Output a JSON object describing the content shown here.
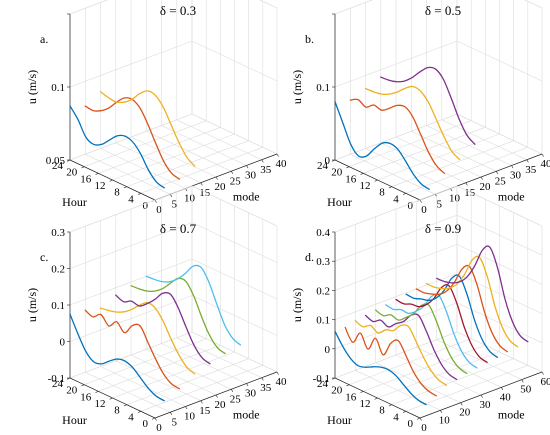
{
  "colors": [
    "#0072BD",
    "#D95319",
    "#EDB120",
    "#7E2F8E",
    "#77AC30",
    "#4DBEEE",
    "#A2142F",
    "#0072BD",
    "#D95319",
    "#EDB120",
    "#7E2F8E"
  ],
  "chart_data": [
    {
      "type": "line",
      "panel_letter": "a.",
      "title": "δ = 0.3",
      "xlabel": "mode",
      "ylabel": "Hour",
      "zlabel": "u (m/s)",
      "xlim": [
        0,
        40
      ],
      "ylim": [
        0,
        24
      ],
      "zlim": [
        0.05,
        0.15
      ],
      "xticks": [
        0,
        5,
        10,
        15,
        20,
        25,
        30,
        35,
        40
      ],
      "yticks": [
        0,
        4,
        8,
        12,
        16,
        20,
        24
      ],
      "zticks": [
        0.05,
        0.1,
        0.15
      ],
      "zticklabels": [
        "0.05",
        "0.1",
        ""
      ],
      "series": [
        {
          "mode_start": 0,
          "hours": [
            24,
            22,
            20,
            18,
            16,
            14,
            12,
            10,
            8,
            6,
            4,
            2,
            0
          ],
          "values": [
            0.087,
            0.08,
            0.07,
            0.067,
            0.069,
            0.074,
            0.079,
            0.081,
            0.079,
            0.073,
            0.064,
            0.058,
            0.056
          ]
        },
        {
          "mode_start": 5,
          "hours": [
            24,
            22,
            20,
            18,
            16,
            14,
            12,
            10,
            8,
            6,
            4,
            2,
            0
          ],
          "values": [
            0.083,
            0.082,
            0.084,
            0.088,
            0.094,
            0.099,
            0.1,
            0.096,
            0.087,
            0.076,
            0.066,
            0.06,
            0.058
          ]
        },
        {
          "mode_start": 10,
          "hours": [
            24,
            22,
            20,
            18,
            16,
            14,
            12,
            10,
            8,
            6,
            4,
            2,
            0
          ],
          "values": [
            0.089,
            0.087,
            0.086,
            0.088,
            0.092,
            0.098,
            0.102,
            0.101,
            0.095,
            0.085,
            0.075,
            0.067,
            0.063
          ]
        }
      ]
    },
    {
      "type": "line",
      "panel_letter": "b.",
      "title": "δ = 0.5",
      "xlabel": "mode",
      "ylabel": "Hour",
      "zlabel": "u (m/s)",
      "xlim": [
        0,
        40
      ],
      "ylim": [
        0,
        24
      ],
      "zlim": [
        0,
        0.2
      ],
      "xticks": [
        0,
        5,
        10,
        15,
        20,
        25,
        30,
        35,
        40
      ],
      "yticks": [
        0,
        4,
        8,
        12,
        16,
        20,
        24
      ],
      "zticks": [
        0,
        0.1,
        0.2
      ],
      "zticklabels": [
        "0",
        "0.1",
        ""
      ],
      "series": [
        {
          "mode_start": 0,
          "hours": [
            24,
            22,
            20,
            18,
            16,
            14,
            12,
            10,
            8,
            6,
            4,
            2,
            0
          ],
          "values": [
            0.08,
            0.055,
            0.03,
            0.018,
            0.022,
            0.036,
            0.048,
            0.052,
            0.048,
            0.036,
            0.022,
            0.013,
            0.01
          ]
        },
        {
          "mode_start": 5,
          "hours": [
            24,
            22,
            20,
            18,
            16,
            14,
            12,
            10,
            8,
            6,
            4,
            2,
            0
          ],
          "values": [
            0.074,
            0.079,
            0.073,
            0.08,
            0.077,
            0.084,
            0.092,
            0.094,
            0.084,
            0.064,
            0.044,
            0.03,
            0.024
          ]
        },
        {
          "mode_start": 10,
          "hours": [
            24,
            22,
            20,
            18,
            16,
            14,
            12,
            10,
            8,
            6,
            4,
            2,
            0
          ],
          "values": [
            0.082,
            0.082,
            0.083,
            0.087,
            0.094,
            0.103,
            0.11,
            0.108,
            0.097,
            0.078,
            0.058,
            0.042,
            0.035
          ]
        },
        {
          "mode_start": 15,
          "hours": [
            24,
            22,
            20,
            18,
            16,
            14,
            12,
            10,
            8,
            6,
            4,
            2,
            0
          ],
          "values": [
            0.09,
            0.09,
            0.092,
            0.097,
            0.106,
            0.118,
            0.128,
            0.13,
            0.12,
            0.098,
            0.074,
            0.056,
            0.048
          ]
        }
      ]
    },
    {
      "type": "line",
      "panel_letter": "c.",
      "title": "δ = 0.7",
      "xlabel": "mode",
      "ylabel": "Hour",
      "zlabel": "u (m/s)",
      "xlim": [
        0,
        40
      ],
      "ylim": [
        0,
        24
      ],
      "zlim": [
        -0.1,
        0.3
      ],
      "xticks": [
        0,
        5,
        10,
        15,
        20,
        25,
        30,
        35,
        40
      ],
      "yticks": [
        0,
        4,
        8,
        12,
        16,
        20,
        24
      ],
      "zticks": [
        -0.1,
        0,
        0.1,
        0.2,
        0.3
      ],
      "zticklabels": [
        "-0.1",
        "0",
        "0.1",
        "0.2",
        "0.3"
      ],
      "series": [
        {
          "mode_start": 0,
          "hours": [
            24,
            22,
            20,
            18,
            16,
            14,
            12,
            10,
            8,
            6,
            4,
            2,
            0
          ],
          "values": [
            0.075,
            0.03,
            -0.01,
            -0.03,
            -0.028,
            -0.012,
            0.002,
            0.005,
            -0.005,
            -0.025,
            -0.045,
            -0.058,
            -0.062
          ]
        },
        {
          "mode_start": 5,
          "hours": [
            24,
            22,
            20,
            18,
            16,
            14,
            12,
            10,
            8,
            6,
            4,
            2,
            0
          ],
          "values": [
            0.07,
            0.06,
            0.075,
            0.052,
            0.072,
            0.05,
            0.078,
            0.085,
            0.048,
            0.01,
            -0.022,
            -0.04,
            -0.045
          ]
        },
        {
          "mode_start": 10,
          "hours": [
            24,
            22,
            20,
            18,
            16,
            14,
            12,
            10,
            8,
            6,
            4,
            2,
            0
          ],
          "values": [
            0.06,
            0.062,
            0.066,
            0.075,
            0.09,
            0.11,
            0.125,
            0.118,
            0.09,
            0.05,
            0.015,
            -0.01,
            -0.02
          ]
        },
        {
          "mode_start": 15,
          "hours": [
            24,
            22,
            20,
            18,
            16,
            14,
            12,
            10,
            8,
            6,
            4,
            2,
            0
          ],
          "values": [
            0.08,
            0.07,
            0.08,
            0.075,
            0.09,
            0.11,
            0.135,
            0.14,
            0.11,
            0.065,
            0.025,
            0.0,
            -0.008
          ]
        },
        {
          "mode_start": 20,
          "hours": [
            24,
            22,
            20,
            18,
            16,
            14,
            12,
            10,
            8,
            6,
            4,
            2,
            0
          ],
          "values": [
            0.09,
            0.09,
            0.092,
            0.1,
            0.115,
            0.138,
            0.16,
            0.16,
            0.128,
            0.08,
            0.038,
            0.012,
            0.004
          ]
        },
        {
          "mode_start": 25,
          "hours": [
            24,
            22,
            20,
            18,
            16,
            14,
            12,
            10,
            8,
            6,
            4,
            2,
            0
          ],
          "values": [
            0.1,
            0.1,
            0.102,
            0.11,
            0.126,
            0.15,
            0.178,
            0.182,
            0.15,
            0.098,
            0.05,
            0.022,
            0.012
          ]
        }
      ]
    },
    {
      "type": "line",
      "panel_letter": "d.",
      "title": "δ = 0.9",
      "xlabel": "mode",
      "ylabel": "Hour",
      "zlabel": "u (m/s)",
      "xlim": [
        0,
        60
      ],
      "ylim": [
        0,
        24
      ],
      "zlim": [
        -0.1,
        0.4
      ],
      "xticks": [
        0,
        10,
        20,
        30,
        40,
        50,
        60
      ],
      "yticks": [
        0,
        4,
        8,
        12,
        16,
        20,
        24
      ],
      "zticks": [
        -0.1,
        0,
        0.1,
        0.2,
        0.3,
        0.4
      ],
      "zticklabels": [
        "-0.1",
        "0",
        "0.1",
        "0.2",
        "0.3",
        "0.4"
      ],
      "series": [
        {
          "mode_start": 0,
          "hours": [
            24,
            22,
            20,
            18,
            16,
            14,
            12,
            10,
            8,
            6,
            4,
            2,
            0
          ],
          "values": [
            0.06,
            0.02,
            -0.01,
            -0.025,
            -0.02,
            -0.008,
            0.002,
            0.004,
            -0.005,
            -0.025,
            -0.045,
            -0.058,
            -0.062
          ]
        },
        {
          "mode_start": 5,
          "hours": [
            24,
            22,
            20,
            18,
            16,
            14,
            12,
            10,
            8,
            6,
            4,
            2,
            0
          ],
          "values": [
            0.06,
            0.02,
            0.062,
            0.018,
            0.066,
            0.02,
            0.07,
            0.09,
            0.05,
            0.005,
            -0.025,
            -0.04,
            -0.045
          ]
        },
        {
          "mode_start": 10,
          "hours": [
            24,
            22,
            20,
            18,
            16,
            14,
            12,
            10,
            8,
            6,
            4,
            2,
            0
          ],
          "values": [
            0.07,
            0.06,
            0.075,
            0.06,
            0.082,
            0.09,
            0.118,
            0.125,
            0.085,
            0.04,
            0.005,
            -0.015,
            -0.022
          ]
        },
        {
          "mode_start": 15,
          "hours": [
            24,
            22,
            20,
            18,
            16,
            14,
            12,
            10,
            8,
            6,
            4,
            2,
            0
          ],
          "values": [
            0.075,
            0.065,
            0.08,
            0.068,
            0.09,
            0.108,
            0.14,
            0.15,
            0.108,
            0.055,
            0.015,
            -0.008,
            -0.015
          ]
        },
        {
          "mode_start": 20,
          "hours": [
            24,
            22,
            20,
            18,
            16,
            14,
            12,
            10,
            8,
            6,
            4,
            2,
            0
          ],
          "values": [
            0.08,
            0.072,
            0.085,
            0.078,
            0.098,
            0.122,
            0.16,
            0.172,
            0.128,
            0.068,
            0.024,
            0.0,
            -0.008
          ]
        },
        {
          "mode_start": 25,
          "hours": [
            24,
            22,
            20,
            18,
            16,
            14,
            12,
            10,
            8,
            6,
            4,
            2,
            0
          ],
          "values": [
            0.085,
            0.08,
            0.09,
            0.088,
            0.106,
            0.134,
            0.178,
            0.192,
            0.146,
            0.08,
            0.032,
            0.006,
            -0.002
          ]
        },
        {
          "mode_start": 30,
          "hours": [
            24,
            22,
            20,
            18,
            16,
            14,
            12,
            10,
            8,
            6,
            4,
            2,
            0
          ],
          "values": [
            0.09,
            0.086,
            0.096,
            0.098,
            0.116,
            0.148,
            0.196,
            0.212,
            0.164,
            0.092,
            0.04,
            0.012,
            0.004
          ]
        },
        {
          "mode_start": 35,
          "hours": [
            24,
            22,
            20,
            18,
            16,
            14,
            12,
            10,
            8,
            6,
            4,
            2,
            0
          ],
          "values": [
            0.095,
            0.092,
            0.1,
            0.106,
            0.126,
            0.162,
            0.214,
            0.232,
            0.182,
            0.104,
            0.048,
            0.018,
            0.008
          ]
        },
        {
          "mode_start": 40,
          "hours": [
            24,
            22,
            20,
            18,
            16,
            14,
            12,
            10,
            8,
            6,
            4,
            2,
            0
          ],
          "values": [
            0.1,
            0.098,
            0.104,
            0.114,
            0.136,
            0.176,
            0.232,
            0.252,
            0.2,
            0.116,
            0.056,
            0.024,
            0.014
          ]
        },
        {
          "mode_start": 45,
          "hours": [
            24,
            22,
            20,
            18,
            16,
            14,
            12,
            10,
            8,
            6,
            4,
            2,
            0
          ],
          "values": [
            0.105,
            0.104,
            0.11,
            0.122,
            0.146,
            0.19,
            0.25,
            0.27,
            0.216,
            0.126,
            0.062,
            0.028,
            0.018
          ]
        },
        {
          "mode_start": 50,
          "hours": [
            24,
            22,
            20,
            18,
            16,
            14,
            12,
            10,
            8,
            6,
            4,
            2,
            0
          ],
          "values": [
            0.11,
            0.11,
            0.116,
            0.13,
            0.158,
            0.206,
            0.27,
            0.292,
            0.234,
            0.136,
            0.068,
            0.032,
            0.022
          ]
        }
      ]
    }
  ]
}
